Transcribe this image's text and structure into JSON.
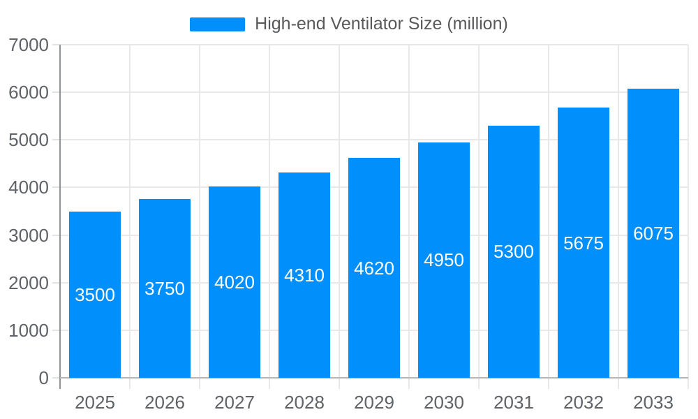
{
  "legend": {
    "label": "High-end Ventilator Size (million)"
  },
  "colors": {
    "bar": "#008FFB",
    "bar_label": "#ffffff",
    "axis_text": "#5f6368",
    "legend_text": "#58595b",
    "gridline": "#e8e8e8",
    "y_axis_line": "#8f9296",
    "x_axis_line": "#b4b4b4",
    "background": "#ffffff"
  },
  "chart_data": {
    "type": "bar",
    "title": "High-end Ventilator Size (million)",
    "categories": [
      "2025",
      "2026",
      "2027",
      "2028",
      "2029",
      "2030",
      "2031",
      "2032",
      "2033"
    ],
    "values": [
      3500,
      3750,
      4020,
      4310,
      4620,
      4950,
      5300,
      5675,
      6075
    ],
    "xlabel": "",
    "ylabel": "",
    "ylim": [
      0,
      7000
    ],
    "ytick_step": 1000,
    "ytick_labels": [
      "0",
      "1000",
      "2000",
      "3000",
      "4000",
      "5000",
      "6000",
      "7000"
    ],
    "grid": true,
    "legend_position": "top",
    "bar_color": "#008FFB",
    "data_labels": true,
    "data_label_position": "center"
  }
}
